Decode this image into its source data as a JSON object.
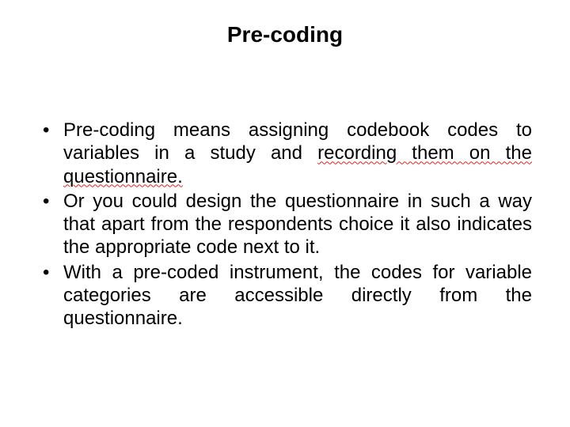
{
  "background_color": "#ffffff",
  "text_color": "#000000",
  "squiggle_color": "#e02020",
  "title": {
    "text": "Pre-coding",
    "fontsize": 28,
    "weight": "bold",
    "align": "center"
  },
  "body": {
    "fontsize": 24,
    "align": "justify",
    "bullets": [
      {
        "runs": [
          {
            "t": "Pre-coding means assigning codebook codes to variables in a study and ",
            "err": false
          },
          {
            "t": "recording them on the questionnaire.",
            "err": true
          }
        ]
      },
      {
        "runs": [
          {
            "t": "Or you could design the questionnaire in such a way that apart from the respondents choice it also indicates the appropriate code next to it.",
            "err": false
          }
        ]
      },
      {
        "runs": [
          {
            "t": "With a pre-coded instrument, the codes for variable categories are accessible directly from the questionnaire.",
            "err": false
          }
        ]
      }
    ]
  }
}
